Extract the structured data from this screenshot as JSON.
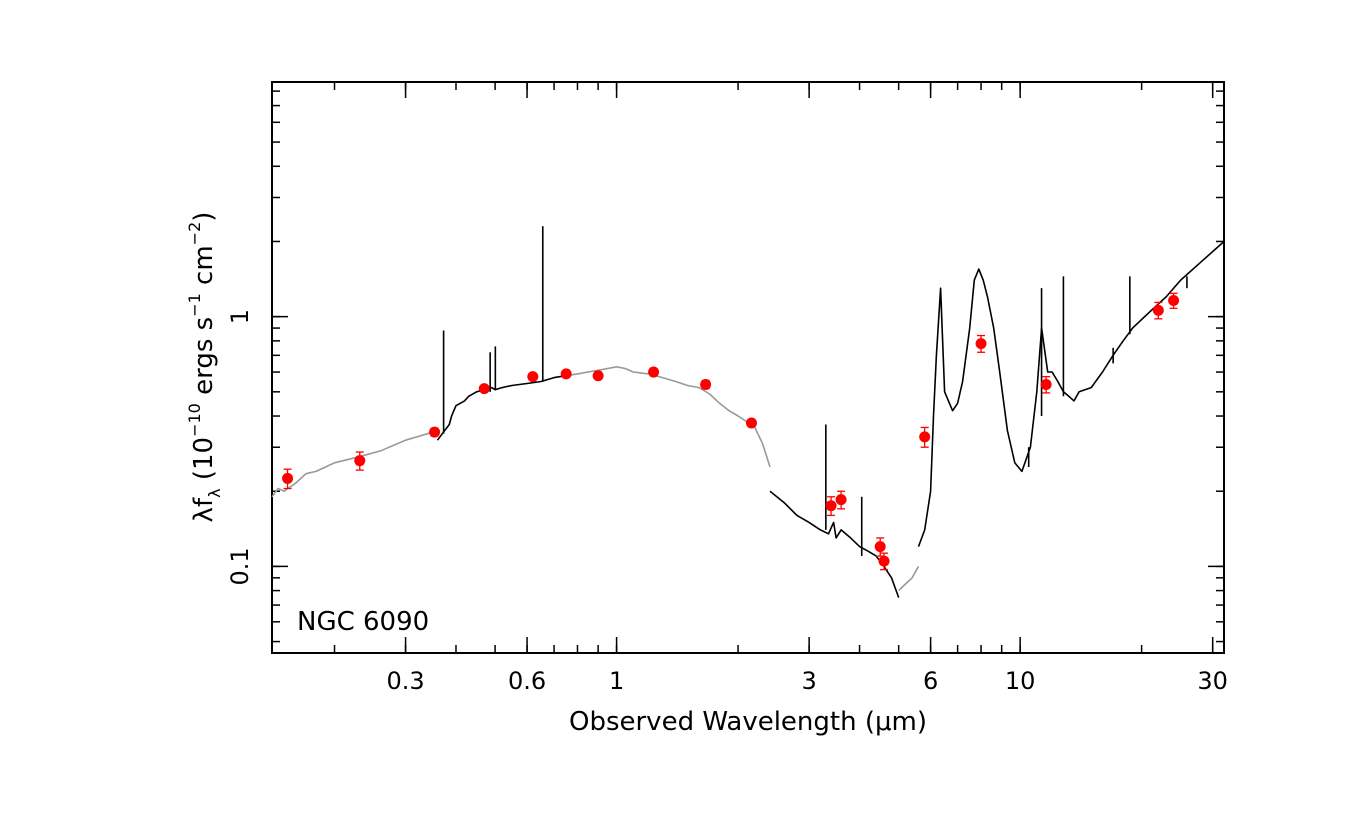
{
  "chart_data": {
    "type": "scatter",
    "title": "",
    "annotation": "NGC 6090",
    "xlabel": "Observed Wavelength (μm)",
    "ylabel": {
      "main": "λf",
      "sub": "λ",
      "units_open": " (10",
      "exp1": "−10",
      "units_mid": " ergs s",
      "exp2": "−1",
      "units_mid2": " cm",
      "exp3": "−2",
      "units_close": ")"
    },
    "xscale": "log",
    "yscale": "log",
    "xlim": [
      0.14,
      32
    ],
    "ylim": [
      0.045,
      8.7
    ],
    "x_ticks": [
      {
        "value": 0.3,
        "label": "0.3"
      },
      {
        "value": 0.6,
        "label": "0.6"
      },
      {
        "value": 1,
        "label": "1"
      },
      {
        "value": 3,
        "label": "3"
      },
      {
        "value": 6,
        "label": "6"
      },
      {
        "value": 10,
        "label": "10"
      },
      {
        "value": 30,
        "label": "30"
      }
    ],
    "y_ticks": [
      {
        "value": 0.1,
        "label": "0.1"
      },
      {
        "value": 1,
        "label": "1"
      }
    ],
    "colors": {
      "points": "#ff0000",
      "template": "#999999",
      "spectrum": "#000000",
      "axes": "#000000"
    },
    "series": [
      {
        "type": "line",
        "color": "#999999",
        "x": [
          0.14,
          0.145,
          0.15,
          0.16,
          0.17,
          0.18,
          0.19,
          0.2,
          0.22,
          0.24,
          0.26,
          0.28,
          0.3,
          0.32,
          0.34,
          0.36
        ],
        "y": [
          0.19,
          0.205,
          0.2,
          0.215,
          0.235,
          0.24,
          0.25,
          0.26,
          0.27,
          0.28,
          0.29,
          0.305,
          0.32,
          0.33,
          0.34,
          0.35
        ]
      },
      {
        "type": "line",
        "color": "#000000",
        "x": [
          0.36,
          0.37,
          0.38,
          0.385,
          0.39,
          0.395,
          0.4,
          0.41,
          0.42,
          0.43,
          0.45,
          0.47,
          0.49,
          0.5,
          0.52,
          0.55,
          0.6,
          0.65,
          0.7,
          0.75
        ],
        "y": [
          0.32,
          0.34,
          0.36,
          0.37,
          0.4,
          0.42,
          0.44,
          0.45,
          0.46,
          0.48,
          0.5,
          0.51,
          0.52,
          0.51,
          0.52,
          0.53,
          0.54,
          0.55,
          0.57,
          0.58
        ]
      },
      {
        "type": "line",
        "color": "#999999",
        "x": [
          0.75,
          0.8,
          0.85,
          0.9,
          0.95,
          1,
          1.05,
          1.1,
          1.2,
          1.3,
          1.4,
          1.5,
          1.6,
          1.7,
          1.8,
          1.9,
          2,
          2.1,
          2.2,
          2.3,
          2.4
        ],
        "y": [
          0.58,
          0.59,
          0.6,
          0.61,
          0.62,
          0.63,
          0.62,
          0.6,
          0.59,
          0.57,
          0.55,
          0.53,
          0.52,
          0.49,
          0.45,
          0.42,
          0.4,
          0.38,
          0.36,
          0.31,
          0.25
        ]
      },
      {
        "type": "line",
        "color": "#000000",
        "x": [
          2.4,
          2.6,
          2.8,
          3,
          3.2,
          3.35,
          3.45,
          3.5,
          3.6,
          3.8,
          4,
          4.2,
          4.4,
          4.6,
          4.8,
          5.0
        ],
        "y": [
          0.2,
          0.18,
          0.16,
          0.15,
          0.14,
          0.135,
          0.15,
          0.13,
          0.14,
          0.13,
          0.12,
          0.115,
          0.11,
          0.1,
          0.09,
          0.075
        ]
      },
      {
        "type": "line",
        "color": "#999999",
        "x": [
          5.0,
          5.2,
          5.4,
          5.6
        ],
        "y": [
          0.08,
          0.085,
          0.09,
          0.1
        ]
      },
      {
        "type": "line",
        "color": "#000000",
        "x": [
          5.6,
          5.8,
          6.0,
          6.1,
          6.2,
          6.35,
          6.5,
          6.8,
          7.0,
          7.2,
          7.5,
          7.7,
          7.9,
          8.1,
          8.3,
          8.6,
          8.9,
          9.3,
          9.7,
          10.1,
          10.6,
          11.0,
          11.3,
          11.7,
          12.0,
          12.4,
          12.8,
          13.2,
          13.6,
          14.0,
          15.0,
          16.0,
          17.0,
          18.0,
          19.0,
          21.0,
          23.0,
          25.0,
          28.0,
          32.0
        ],
        "y": [
          0.12,
          0.14,
          0.2,
          0.4,
          0.7,
          1.3,
          0.5,
          0.42,
          0.45,
          0.55,
          0.9,
          1.4,
          1.55,
          1.4,
          1.2,
          0.9,
          0.6,
          0.35,
          0.26,
          0.24,
          0.3,
          0.5,
          0.9,
          0.6,
          0.6,
          0.55,
          0.5,
          0.48,
          0.46,
          0.5,
          0.52,
          0.6,
          0.7,
          0.8,
          0.9,
          1.05,
          1.2,
          1.4,
          1.65,
          2.0
        ]
      },
      {
        "type": "emission_lines",
        "color": "#000000",
        "lines": [
          {
            "x": 0.3727,
            "base": 0.34,
            "peak": 0.88
          },
          {
            "x": 0.4861,
            "base": 0.5,
            "peak": 0.72
          },
          {
            "x": 0.5007,
            "base": 0.51,
            "peak": 0.76
          },
          {
            "x": 0.6563,
            "base": 0.55,
            "peak": 2.3
          },
          {
            "x": 3.3,
            "base": 0.14,
            "peak": 0.37
          },
          {
            "x": 4.05,
            "base": 0.11,
            "peak": 0.19
          },
          {
            "x": 10.5,
            "base": 0.25,
            "peak": 0.3
          },
          {
            "x": 11.3,
            "base": 0.4,
            "peak": 1.3
          },
          {
            "x": 12.8,
            "base": 0.48,
            "peak": 1.45
          },
          {
            "x": 17.0,
            "base": 0.65,
            "peak": 0.75
          },
          {
            "x": 18.7,
            "base": 0.85,
            "peak": 1.45
          },
          {
            "x": 25.9,
            "base": 1.3,
            "peak": 1.45
          }
        ]
      },
      {
        "type": "scatter",
        "color": "#ff0000",
        "points": [
          {
            "x": 0.153,
            "y": 0.225,
            "err": 0.02
          },
          {
            "x": 0.231,
            "y": 0.265,
            "err": 0.022
          },
          {
            "x": 0.354,
            "y": 0.345,
            "err": 0.012
          },
          {
            "x": 0.47,
            "y": 0.515,
            "err": 0.012
          },
          {
            "x": 0.62,
            "y": 0.575,
            "err": 0.012
          },
          {
            "x": 0.75,
            "y": 0.59,
            "err": 0.012
          },
          {
            "x": 0.9,
            "y": 0.58,
            "err": 0.015
          },
          {
            "x": 1.235,
            "y": 0.6,
            "err": 0.015
          },
          {
            "x": 1.662,
            "y": 0.535,
            "err": 0.02
          },
          {
            "x": 2.159,
            "y": 0.375,
            "err": 0.012
          },
          {
            "x": 3.4,
            "y": 0.175,
            "err": 0.015
          },
          {
            "x": 3.6,
            "y": 0.185,
            "err": 0.015
          },
          {
            "x": 4.5,
            "y": 0.12,
            "err": 0.01
          },
          {
            "x": 4.6,
            "y": 0.105,
            "err": 0.008
          },
          {
            "x": 5.8,
            "y": 0.33,
            "err": 0.03
          },
          {
            "x": 8.0,
            "y": 0.78,
            "err": 0.06
          },
          {
            "x": 11.6,
            "y": 0.535,
            "err": 0.04
          },
          {
            "x": 22.0,
            "y": 1.06,
            "err": 0.08
          },
          {
            "x": 24.0,
            "y": 1.16,
            "err": 0.08
          }
        ]
      }
    ]
  }
}
